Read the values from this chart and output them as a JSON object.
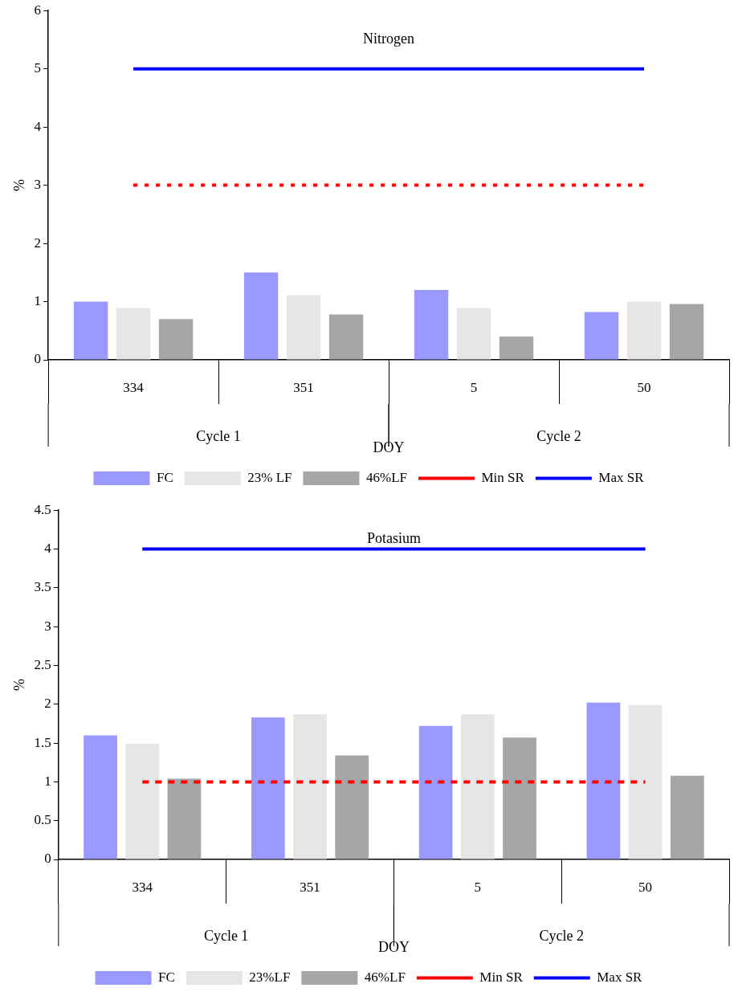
{
  "chart_data": [
    {
      "type": "bar",
      "title": "Nitrogen",
      "xlabel": "DOY",
      "ylabel": "%",
      "categories": [
        "334",
        "351",
        "5",
        "50"
      ],
      "annotations": [
        "Cycle 1",
        "Cycle 2"
      ],
      "ylim": [
        0,
        6
      ],
      "yticks": [
        0,
        1,
        2,
        3,
        4,
        5,
        6
      ],
      "grid": false,
      "legend": "bottom",
      "series": [
        {
          "name": "FC",
          "color": "#9999ff",
          "values": [
            1.0,
            1.5,
            1.2,
            0.82
          ]
        },
        {
          "name": "23% LF",
          "color": "#e6e6e6",
          "values": [
            0.89,
            1.11,
            0.89,
            1.0
          ]
        },
        {
          "name": "46%LF",
          "color": "#a6a6a6",
          "values": [
            0.7,
            0.78,
            0.4,
            0.96
          ]
        },
        {
          "name": "Min SR",
          "type": "line",
          "color": "#ff0000",
          "line_style": "dotted",
          "marker": "none",
          "values": [
            3,
            3,
            3,
            3
          ]
        },
        {
          "name": "Max SR",
          "type": "line",
          "color": "#0000ff",
          "line_style": "solid",
          "marker": "none",
          "values": [
            5,
            5,
            5,
            5
          ]
        }
      ]
    },
    {
      "type": "bar",
      "title": "Potasium",
      "xlabel": "DOY",
      "ylabel": "%",
      "categories": [
        "334",
        "351",
        "5",
        "50"
      ],
      "annotations": [
        "Cycle 1",
        "Cycle 2"
      ],
      "ylim": [
        0,
        4.5
      ],
      "yticks": [
        0,
        0.5,
        1,
        1.5,
        2,
        2.5,
        3,
        3.5,
        4,
        4.5
      ],
      "grid": false,
      "legend": "bottom",
      "series": [
        {
          "name": "FC",
          "color": "#9999ff",
          "values": [
            1.6,
            1.83,
            1.72,
            2.02
          ]
        },
        {
          "name": "23%LF",
          "color": "#e6e6e6",
          "values": [
            1.49,
            1.87,
            1.87,
            1.99
          ]
        },
        {
          "name": "46%LF",
          "color": "#a6a6a6",
          "values": [
            1.04,
            1.34,
            1.57,
            1.08
          ]
        },
        {
          "name": "Min SR",
          "type": "line",
          "color": "#ff0000",
          "line_style": "dashed",
          "marker": "none",
          "values": [
            1,
            1,
            1,
            1
          ]
        },
        {
          "name": "Max SR",
          "type": "line",
          "color": "#0000ff",
          "line_style": "solid",
          "marker": "none",
          "values": [
            4,
            4,
            4,
            4
          ]
        }
      ]
    }
  ]
}
